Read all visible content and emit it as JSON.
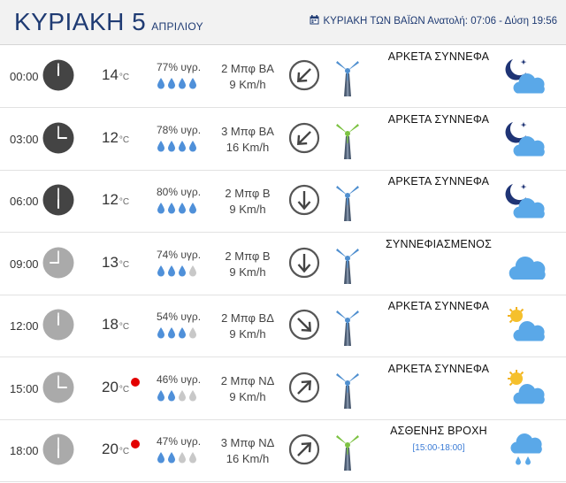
{
  "header": {
    "day": "ΚΥΡΙΑΚΗ 5",
    "month": "ΑΠΡΙΛΙΟΥ",
    "holiday_sun": "ΚΥΡΙΑΚΗ ΤΩΝ ΒΑΪΩΝ Ανατολή: 07:06  - Δύση 19:56"
  },
  "colors": {
    "title": "#1f3b73",
    "drop": "#4f90d9",
    "drop_off": "#c8c8c8",
    "hot_dot": "#e30000",
    "clock_night": "#444444",
    "clock_day": "#aaaaaa"
  },
  "units": {
    "temp": "°C"
  },
  "rows": [
    {
      "time": "00:00",
      "clock": "night",
      "hour": 0,
      "temp": "14",
      "hot": false,
      "humidity": "77% υγρ.",
      "drops": 4,
      "wind_bft": "2 Μπφ ΒΑ",
      "wind_kmh": "9 Km/h",
      "dir_deg": 225,
      "turbine": "blue",
      "condition": "ΑΡΚΕΤΑ ΣΥΝΝΕΦΑ",
      "sub": "",
      "icon": "moon-cloud"
    },
    {
      "time": "03:00",
      "clock": "night",
      "hour": 3,
      "temp": "12",
      "hot": false,
      "humidity": "78% υγρ.",
      "drops": 4,
      "wind_bft": "3 Μπφ ΒΑ",
      "wind_kmh": "16 Km/h",
      "dir_deg": 225,
      "turbine": "green",
      "condition": "ΑΡΚΕΤΑ ΣΥΝΝΕΦΑ",
      "sub": "",
      "icon": "moon-cloud"
    },
    {
      "time": "06:00",
      "clock": "night",
      "hour": 6,
      "temp": "12",
      "hot": false,
      "humidity": "80% υγρ.",
      "drops": 4,
      "wind_bft": "2 Μπφ Β",
      "wind_kmh": "9 Km/h",
      "dir_deg": 180,
      "turbine": "blue",
      "condition": "ΑΡΚΕΤΑ ΣΥΝΝΕΦΑ",
      "sub": "",
      "icon": "moon-cloud"
    },
    {
      "time": "09:00",
      "clock": "day",
      "hour": 9,
      "temp": "13",
      "hot": false,
      "humidity": "74% υγρ.",
      "drops": 3,
      "wind_bft": "2 Μπφ Β",
      "wind_kmh": "9 Km/h",
      "dir_deg": 180,
      "turbine": "blue",
      "condition": "ΣΥΝΝΕΦΙΑΣΜΕΝΟΣ",
      "sub": "",
      "icon": "cloud"
    },
    {
      "time": "12:00",
      "clock": "day",
      "hour": 12,
      "temp": "18",
      "hot": false,
      "humidity": "54% υγρ.",
      "drops": 3,
      "wind_bft": "2 Μπφ ΒΔ",
      "wind_kmh": "9 Km/h",
      "dir_deg": 135,
      "turbine": "blue",
      "condition": "ΑΡΚΕΤΑ ΣΥΝΝΕΦΑ",
      "sub": "",
      "icon": "sun-cloud"
    },
    {
      "time": "15:00",
      "clock": "day",
      "hour": 15,
      "temp": "20",
      "hot": true,
      "humidity": "46% υγρ.",
      "drops": 2,
      "wind_bft": "2 Μπφ ΝΔ",
      "wind_kmh": "9 Km/h",
      "dir_deg": 45,
      "turbine": "blue",
      "condition": "ΑΡΚΕΤΑ ΣΥΝΝΕΦΑ",
      "sub": "",
      "icon": "sun-cloud"
    },
    {
      "time": "18:00",
      "clock": "day",
      "hour": 18,
      "temp": "20",
      "hot": true,
      "humidity": "47% υγρ.",
      "drops": 2,
      "wind_bft": "3 Μπφ ΝΔ",
      "wind_kmh": "16 Km/h",
      "dir_deg": 45,
      "turbine": "green",
      "condition": "ΑΣΘΕΝΗΣ ΒΡΟΧΗ",
      "sub": "[15:00-18:00]",
      "icon": "rain"
    }
  ]
}
